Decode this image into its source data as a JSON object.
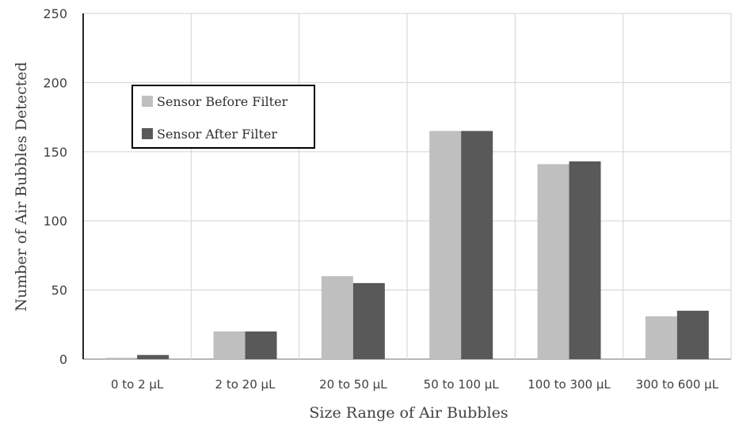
{
  "chart_data": {
    "type": "bar",
    "title": "",
    "xlabel": "Size Range of Air Bubbles",
    "ylabel": "Number of Air Bubbles Detected",
    "ylim": [
      0,
      250
    ],
    "yticks": [
      0,
      50,
      100,
      150,
      200,
      250
    ],
    "grid": "vertical and horizontal",
    "legend_position": "upper-left",
    "categories": [
      "0 to 2 µL",
      "2 to 20 µL",
      "20 to 50 µL",
      "50 to 100 µL",
      "100 to 300 µL",
      "300 to 600 µL"
    ],
    "series": [
      {
        "name": "Sensor Before Filter",
        "color": "#bfbfbf",
        "values": [
          1,
          20,
          60,
          165,
          141,
          31
        ]
      },
      {
        "name": "Sensor After Filter",
        "color": "#595959",
        "values": [
          3,
          20,
          55,
          165,
          143,
          35
        ]
      }
    ]
  }
}
